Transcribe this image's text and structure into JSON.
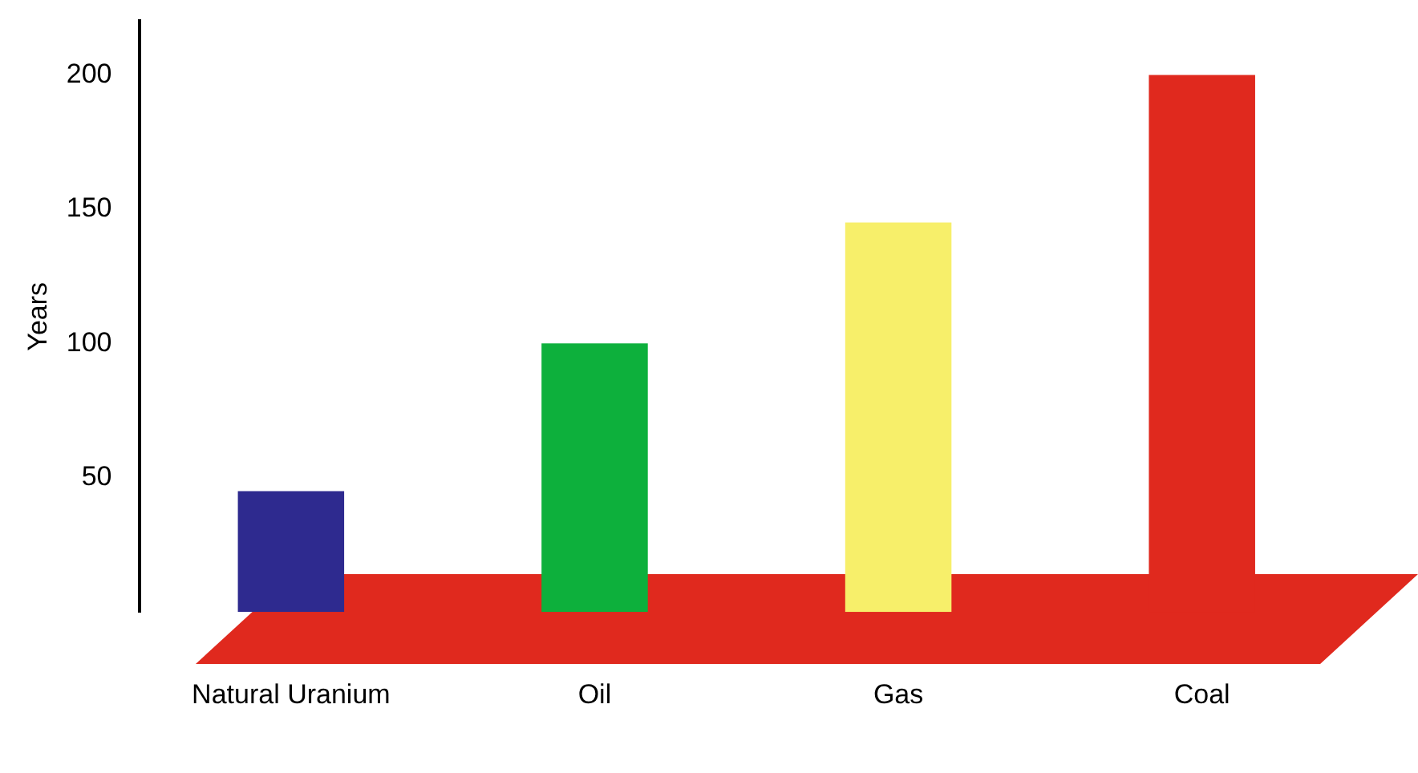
{
  "chart_data": {
    "type": "bar",
    "ylabel": "Years",
    "categories": [
      "Natural Uranium",
      "Oil",
      "Gas",
      "Coal"
    ],
    "values": [
      45,
      100,
      145,
      200
    ],
    "colors": [
      "#2e2a8f",
      "#0db03c",
      "#f7ef6a",
      "#e0291e"
    ],
    "ylim": [
      0,
      220
    ],
    "yticks": [
      50,
      100,
      150,
      200
    ],
    "grid": false,
    "legend": false
  }
}
